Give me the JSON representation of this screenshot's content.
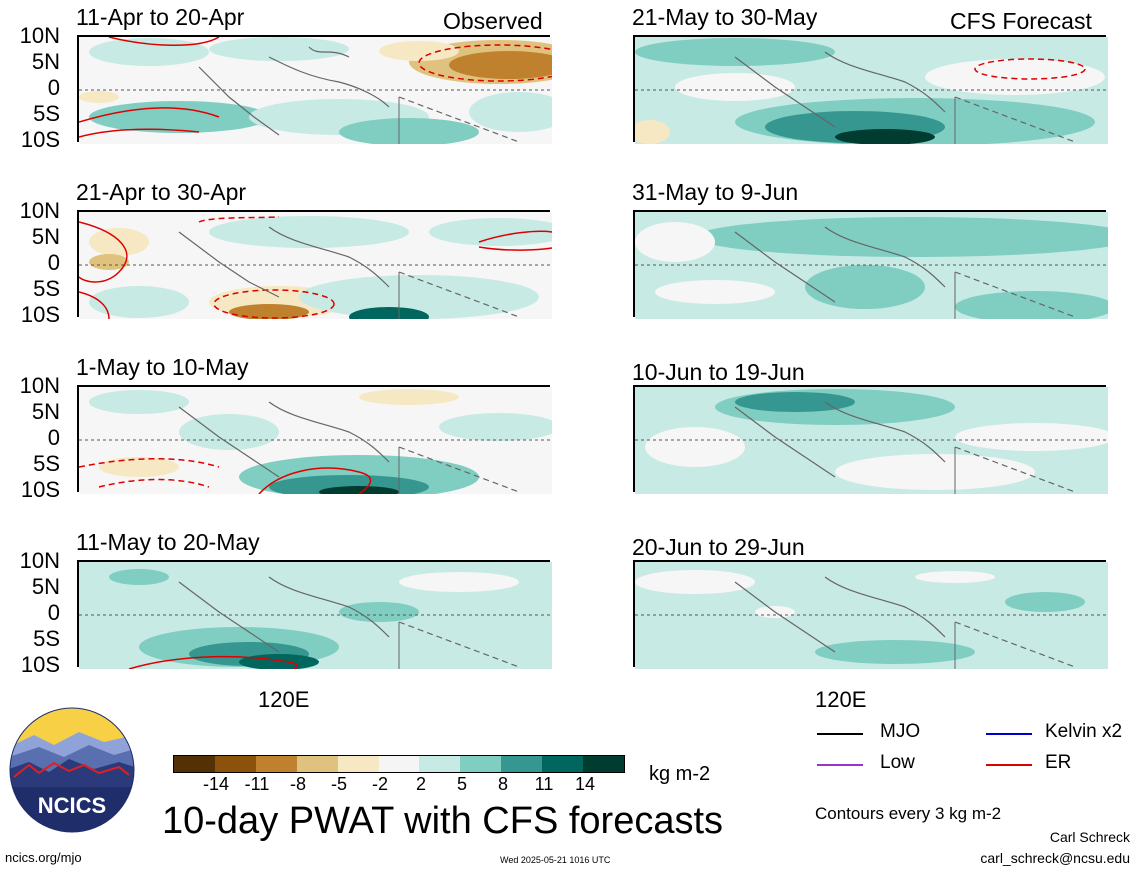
{
  "panels": {
    "left": [
      {
        "title": "11-Apr to 20-Apr",
        "tag": "Observed"
      },
      {
        "title": "21-Apr to 30-Apr",
        "tag": ""
      },
      {
        "title": "1-May to 10-May",
        "tag": ""
      },
      {
        "title": "11-May to 20-May",
        "tag": ""
      }
    ],
    "right": [
      {
        "title": "21-May to 30-May",
        "tag": "CFS Forecast"
      },
      {
        "title": "31-May to 9-Jun",
        "tag": ""
      },
      {
        "title": "10-Jun to 19-Jun",
        "tag": ""
      },
      {
        "title": "20-Jun to 29-Jun",
        "tag": ""
      }
    ]
  },
  "y_axis_labels": [
    "10N",
    "5N",
    "0",
    "5S",
    "10S"
  ],
  "x_axis_label": "120E",
  "colorbar": {
    "labels": [
      "-14",
      "-11",
      "-8",
      "-5",
      "-2",
      "2",
      "5",
      "8",
      "11",
      "14"
    ],
    "unit": "kg m-2",
    "colors": [
      "#543005",
      "#8c510a",
      "#bf812d",
      "#dfc27d",
      "#f6e8c3",
      "#f5f5f5",
      "#c7eae5",
      "#80cdc1",
      "#35978f",
      "#01665e",
      "#003c30"
    ]
  },
  "legend": {
    "items": [
      {
        "label": "MJO",
        "color": "#000000"
      },
      {
        "label": "Kelvin x2",
        "color": "#0000cc"
      },
      {
        "label": "Low",
        "color": "#9933cc"
      },
      {
        "label": "ER",
        "color": "#dd0000"
      }
    ],
    "contour_note": "Contours every 3 kg m-2"
  },
  "main_title": "10-day PWAT with CFS forecasts",
  "logo_text": "NCICS",
  "footer": {
    "url": "ncics.org/mjo",
    "timestamp": "Wed 2025-05-21 1016 UTC",
    "author": "Carl Schreck",
    "email": "carl_schreck@ncsu.edu"
  }
}
